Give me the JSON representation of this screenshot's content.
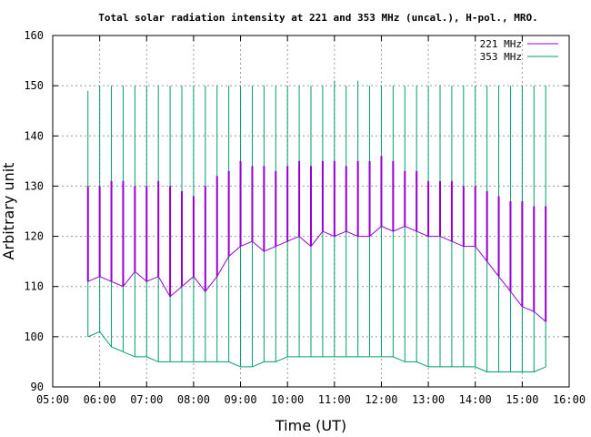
{
  "chart_data": {
    "type": "line",
    "title": "Total solar radiation intensity at 221 and 353 MHz (uncal.), H-pol., MRO.",
    "xlabel": "Time (UT)",
    "ylabel": "Arbitrary unit",
    "xlim": [
      "05:00",
      "16:00"
    ],
    "ylim": [
      90,
      160
    ],
    "x_ticks": [
      "05:00",
      "06:00",
      "07:00",
      "08:00",
      "09:00",
      "10:00",
      "11:00",
      "12:00",
      "13:00",
      "14:00",
      "15:00",
      "16:00"
    ],
    "y_ticks": [
      90,
      100,
      110,
      120,
      130,
      140,
      150,
      160
    ],
    "grid": true,
    "legend_position": "top-right",
    "colors": {
      "221 MHz": "#9400d3",
      "353 MHz": "#009e73"
    },
    "series": [
      {
        "name": "221 MHz",
        "x": [
          "05:45",
          "06:00",
          "06:15",
          "06:30",
          "06:45",
          "07:00",
          "07:15",
          "07:30",
          "07:45",
          "08:00",
          "08:15",
          "08:30",
          "08:45",
          "09:00",
          "09:15",
          "09:30",
          "09:45",
          "10:00",
          "10:15",
          "10:30",
          "10:45",
          "11:00",
          "11:15",
          "11:30",
          "11:45",
          "12:00",
          "12:15",
          "12:30",
          "12:45",
          "13:00",
          "13:15",
          "13:30",
          "13:45",
          "14:00",
          "14:15",
          "14:30",
          "14:45",
          "15:00",
          "15:15",
          "15:30"
        ],
        "values": [
          111,
          112,
          111,
          110,
          113,
          111,
          112,
          108,
          110,
          112,
          109,
          112,
          116,
          118,
          119,
          117,
          118,
          119,
          120,
          118,
          121,
          120,
          121,
          120,
          120,
          122,
          121,
          122,
          121,
          120,
          120,
          119,
          118,
          118,
          115,
          112,
          109,
          106,
          105,
          103
        ],
        "peaks": [
          130,
          130,
          131,
          131,
          130,
          130,
          131,
          130,
          129,
          128,
          130,
          132,
          133,
          135,
          134,
          134,
          133,
          134,
          135,
          134,
          135,
          135,
          134,
          135,
          135,
          136,
          135,
          133,
          133,
          131,
          131,
          131,
          130,
          130,
          129,
          128,
          127,
          127,
          126,
          126
        ]
      },
      {
        "name": "353 MHz",
        "x": [
          "05:45",
          "06:00",
          "06:15",
          "06:30",
          "06:45",
          "07:00",
          "07:15",
          "07:30",
          "07:45",
          "08:00",
          "08:15",
          "08:30",
          "08:45",
          "09:00",
          "09:15",
          "09:30",
          "09:45",
          "10:00",
          "10:15",
          "10:30",
          "10:45",
          "11:00",
          "11:15",
          "11:30",
          "11:45",
          "12:00",
          "12:15",
          "12:30",
          "12:45",
          "13:00",
          "13:15",
          "13:30",
          "13:45",
          "14:00",
          "14:15",
          "14:30",
          "14:45",
          "15:00",
          "15:15",
          "15:30"
        ],
        "values": [
          100,
          101,
          98,
          97,
          96,
          96,
          95,
          95,
          95,
          95,
          95,
          95,
          95,
          94,
          94,
          95,
          95,
          96,
          96,
          96,
          96,
          96,
          96,
          96,
          96,
          96,
          96,
          95,
          95,
          94,
          94,
          94,
          94,
          94,
          93,
          93,
          93,
          93,
          93,
          94
        ],
        "peaks": [
          149,
          150,
          150,
          150,
          150,
          150,
          150,
          150,
          150,
          150,
          150,
          150,
          150,
          150,
          150,
          150,
          150,
          150,
          150,
          150,
          150,
          151,
          150,
          151,
          150,
          150,
          150,
          150,
          150,
          150,
          150,
          150,
          150,
          150,
          150,
          150,
          150,
          150,
          150,
          150
        ]
      }
    ]
  }
}
